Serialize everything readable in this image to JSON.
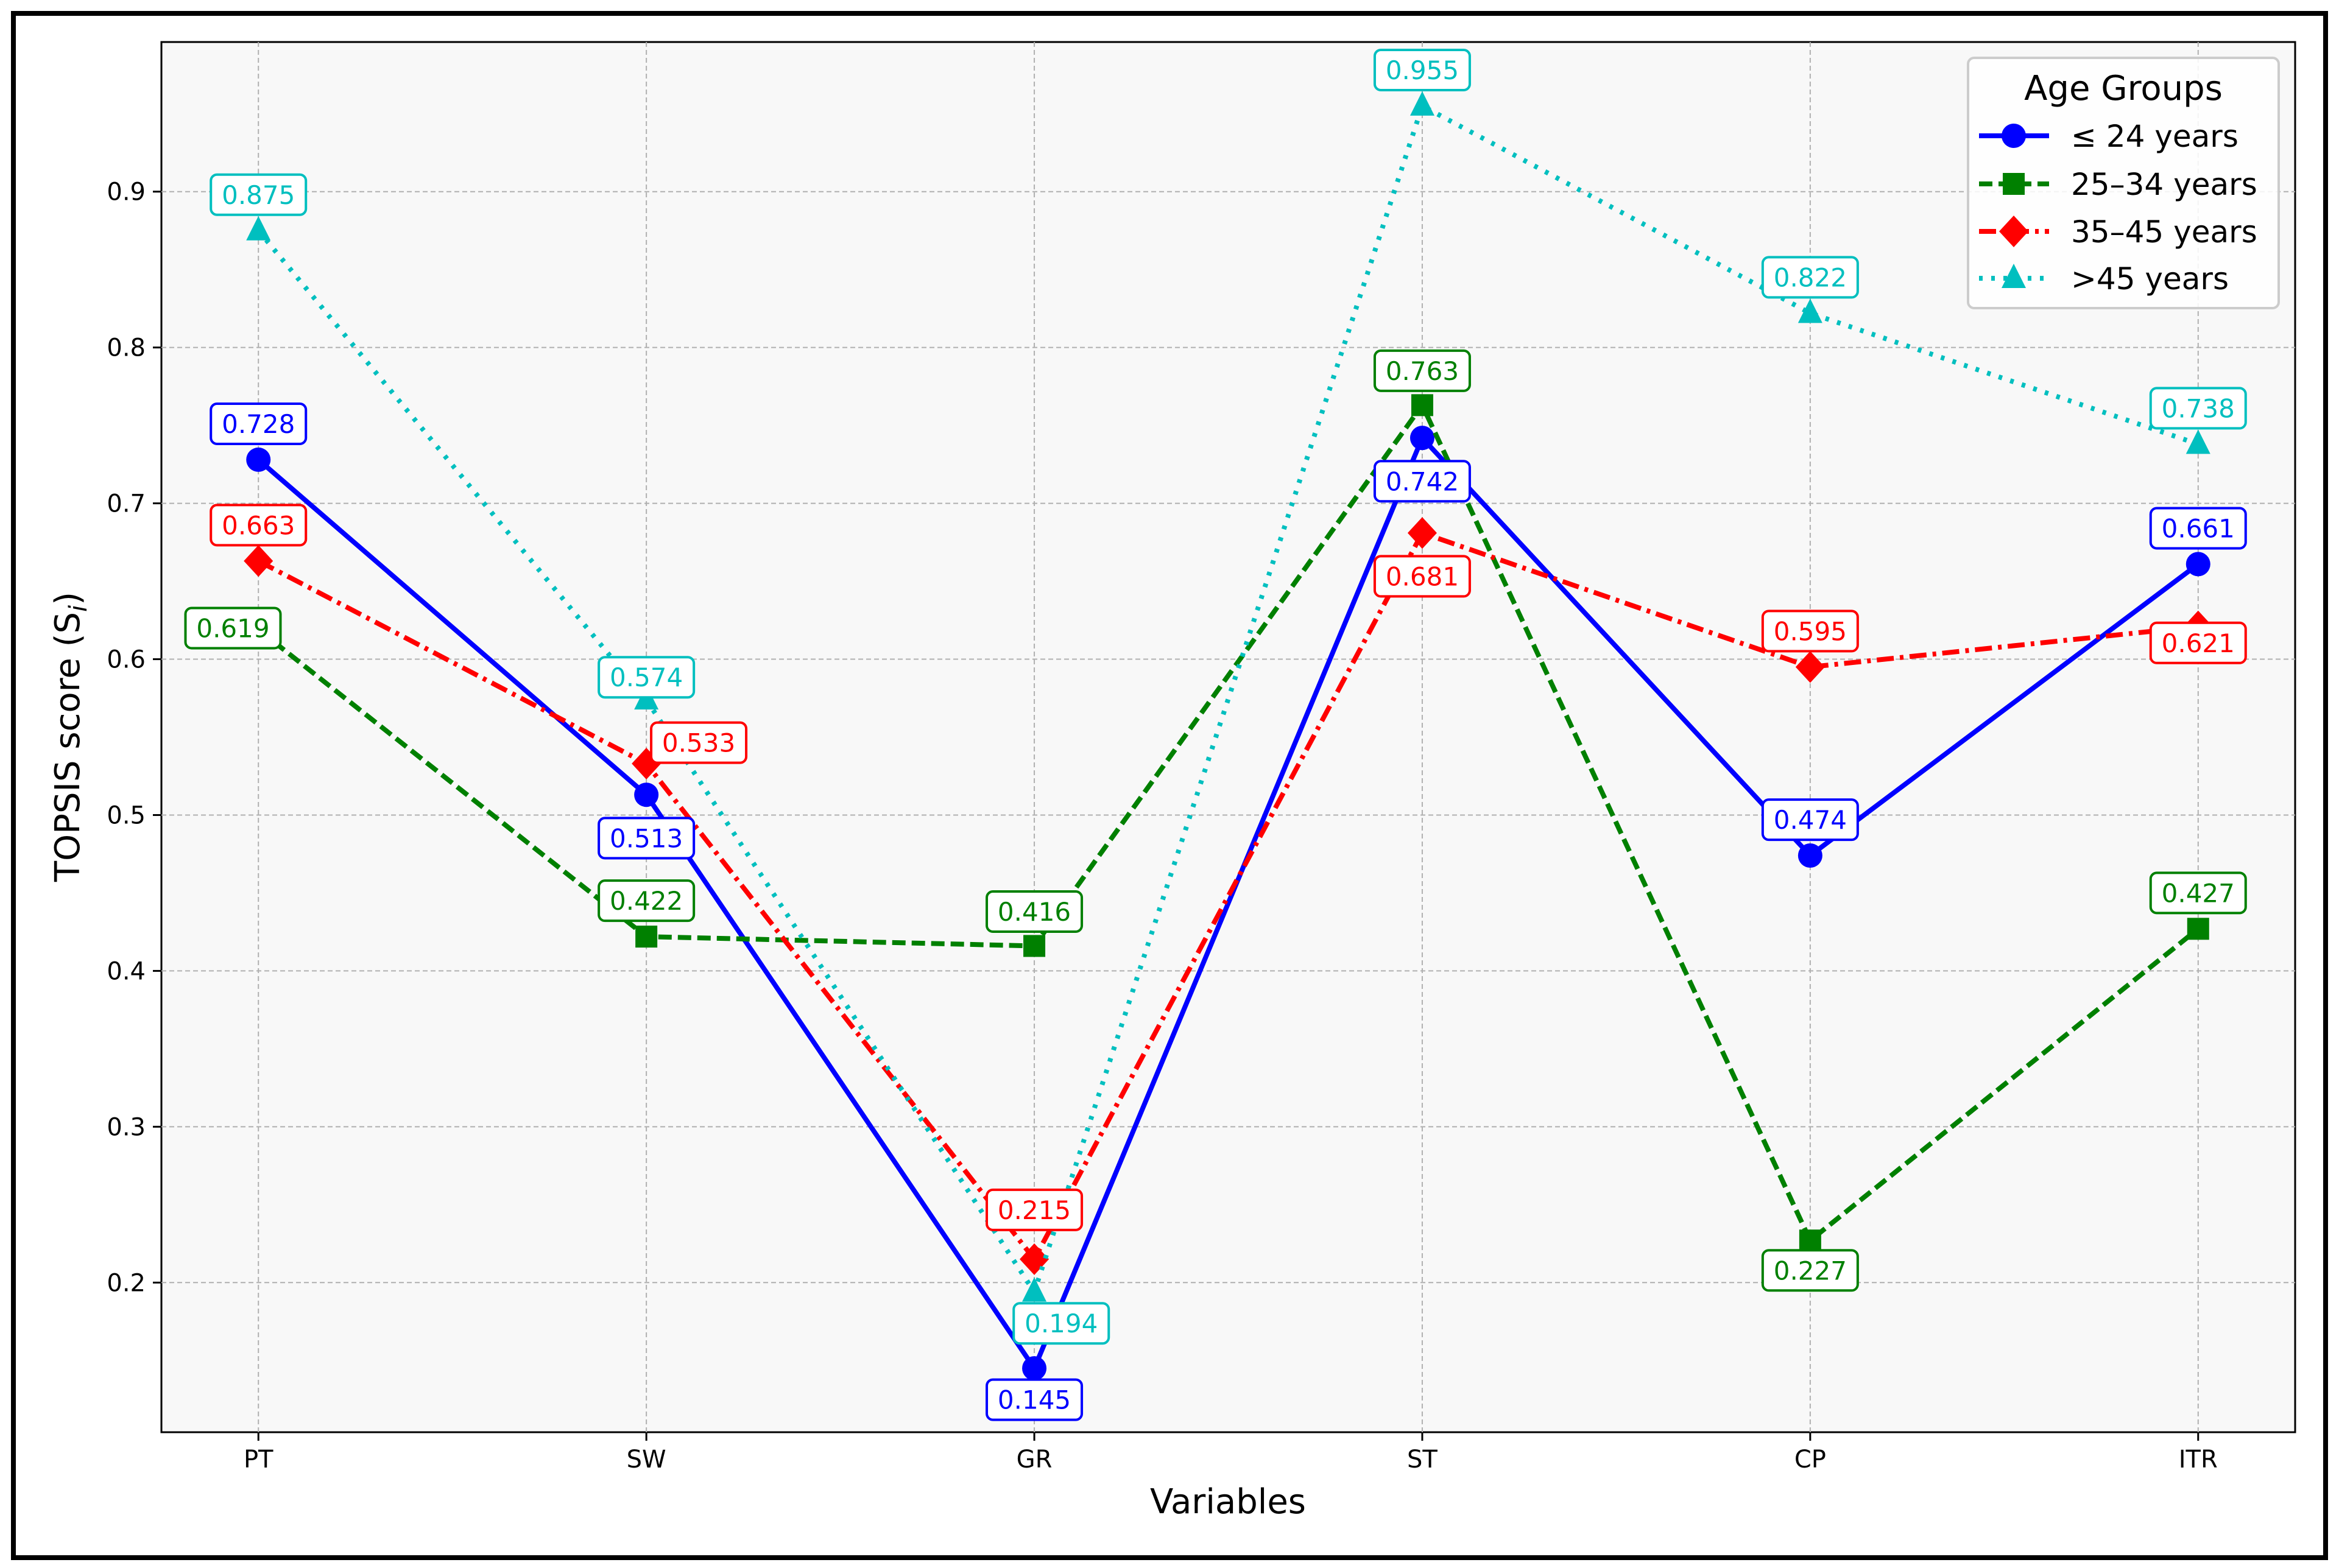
{
  "chart_data": {
    "type": "line",
    "title": "",
    "xlabel": "Variables",
    "ylabel": "TOPSIS score (S",
    "ylabel_subscript": "i",
    "ylabel_close": ")",
    "categories": [
      "PT",
      "SW",
      "GR",
      "ST",
      "CP",
      "ITR"
    ],
    "yticks": [
      "0.2",
      "0.3",
      "0.4",
      "0.5",
      "0.6",
      "0.7",
      "0.8",
      "0.9"
    ],
    "ylim": [
      0.104,
      0.996
    ],
    "grid": true,
    "legend": {
      "title": "Age Groups",
      "placement": "top-right"
    },
    "series": [
      {
        "name": "≤ 24 years",
        "color": "#0000ff",
        "marker": "circle",
        "linestyle": "solid",
        "values": [
          0.728,
          0.513,
          0.145,
          0.742,
          0.474,
          0.661
        ],
        "labels": [
          "0.728",
          "0.513",
          "0.145",
          "0.742",
          "0.474",
          "0.661"
        ]
      },
      {
        "name": "25–34 years",
        "color": "#008000",
        "marker": "square",
        "linestyle": "dashed",
        "values": [
          0.619,
          0.422,
          0.416,
          0.763,
          0.227,
          0.427
        ],
        "labels": [
          "0.619",
          "0.422",
          "0.416",
          "0.763",
          "0.227",
          "0.427"
        ]
      },
      {
        "name": "35–45 years",
        "color": "#ff0000",
        "marker": "diamond",
        "linestyle": "dashdot",
        "values": [
          0.663,
          0.533,
          0.215,
          0.681,
          0.595,
          0.621
        ],
        "labels": [
          "0.663",
          "0.533",
          "0.215",
          "0.681",
          "0.595",
          "0.621"
        ]
      },
      {
        "name": ">45 years",
        "color": "#00bfbf",
        "marker": "triangle",
        "linestyle": "dotted",
        "values": [
          0.875,
          0.574,
          0.194,
          0.955,
          0.822,
          0.738
        ],
        "labels": [
          "0.875",
          "0.574",
          "0.194",
          "0.955",
          "0.822",
          "0.738"
        ]
      }
    ]
  }
}
